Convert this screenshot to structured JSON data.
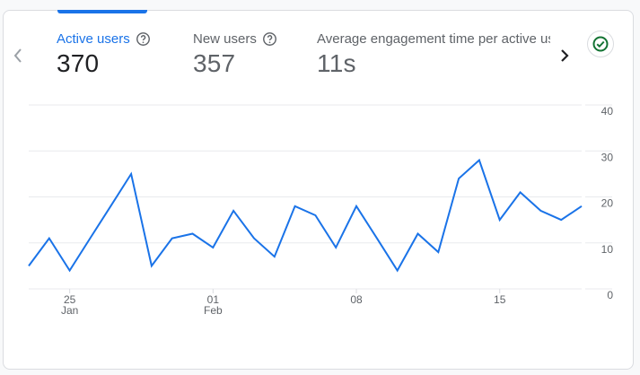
{
  "metrics": [
    {
      "label": "Active users",
      "value": "370",
      "active": true,
      "has_help": true
    },
    {
      "label": "New users",
      "value": "357",
      "active": false,
      "has_help": true
    },
    {
      "label": "Average engagement time per active us",
      "value": "11s",
      "active": false,
      "has_help": false
    }
  ],
  "icons": {
    "prev": "chevron-left-icon",
    "next": "chevron-right-icon",
    "help": "help-circle-icon",
    "status": "check-circle-icon"
  },
  "colors": {
    "accent": "#1a73e8",
    "line": "#1a73e8",
    "gridline": "#e8eaed",
    "status_green": "#137333"
  },
  "chart_data": {
    "type": "line",
    "title": "Active users",
    "xlabel": "",
    "ylabel": "",
    "ylim": [
      0,
      40
    ],
    "y_ticks": [
      "0",
      "10",
      "20",
      "30",
      "40"
    ],
    "y_axis_position": "right",
    "grid": true,
    "x_tick_labels": [
      {
        "day": "25",
        "month": "Jan"
      },
      {
        "day": "01",
        "month": "Feb"
      },
      {
        "day": "08",
        "month": ""
      },
      {
        "day": "15",
        "month": ""
      }
    ],
    "x": [
      "Jan 23",
      "Jan 24",
      "Jan 25",
      "Jan 26",
      "Jan 27",
      "Jan 28",
      "Jan 29",
      "Jan 30",
      "Jan 31",
      "Feb 01",
      "Feb 02",
      "Feb 03",
      "Feb 04",
      "Feb 05",
      "Feb 06",
      "Feb 07",
      "Feb 08",
      "Feb 09",
      "Feb 10",
      "Feb 11",
      "Feb 12",
      "Feb 13",
      "Feb 14",
      "Feb 15",
      "Feb 16",
      "Feb 17",
      "Feb 18",
      "Feb 19"
    ],
    "series": [
      {
        "name": "Active users",
        "values": [
          5,
          11,
          4,
          11,
          18,
          25,
          5,
          11,
          12,
          9,
          17,
          11,
          7,
          18,
          16,
          9,
          18,
          11,
          4,
          12,
          8,
          24,
          28,
          15,
          21,
          17,
          15,
          18
        ]
      }
    ]
  }
}
